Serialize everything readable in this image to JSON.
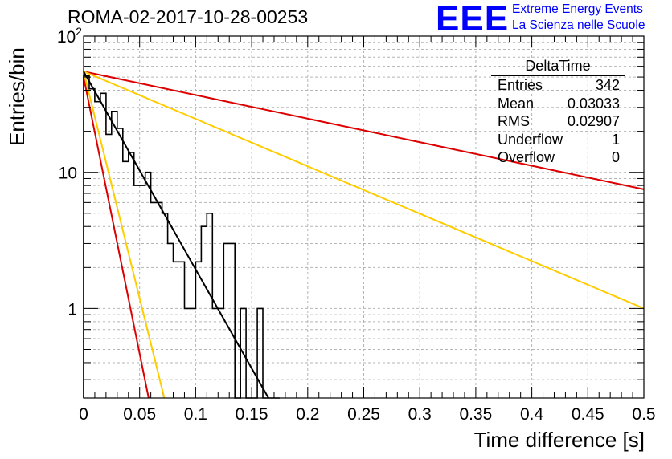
{
  "title": "ROMA-02-2017-10-28-00253",
  "logo": {
    "text": "EEE",
    "line1": "Extreme Energy Events",
    "line2": "La Scienza nelle Scuole"
  },
  "stats": {
    "name": "DeltaTime",
    "rows": [
      {
        "label": "Entries",
        "value": "342"
      },
      {
        "label": "Mean",
        "value": "0.03033"
      },
      {
        "label": "RMS",
        "value": "0.02907"
      },
      {
        "label": "Underflow",
        "value": "1"
      },
      {
        "label": "Overflow",
        "value": "0"
      }
    ]
  },
  "chart_data": {
    "type": "line",
    "title": "ROMA-02-2017-10-28-00253",
    "xlabel": "Time difference [s]",
    "ylabel": "Entries/bin",
    "xlim": [
      0,
      0.5
    ],
    "ylim": [
      0.22,
      100
    ],
    "yscale": "log",
    "grid": true,
    "xticks": [
      0,
      0.05,
      0.1,
      0.15,
      0.2,
      0.25,
      0.3,
      0.35,
      0.4,
      0.45,
      0.5
    ],
    "xtick_labels": [
      "0",
      "0.05",
      "0.1",
      "0.15",
      "0.2",
      "0.25",
      "0.3",
      "0.35",
      "0.4",
      "0.45",
      "0.5"
    ],
    "yticks": [
      1,
      10,
      100
    ],
    "ytick_labels": [
      "1",
      "10",
      "10^2"
    ],
    "histogram": {
      "bin_width": 0.005,
      "values": [
        51,
        41,
        33,
        38,
        19,
        28,
        21,
        12,
        14,
        8,
        8,
        10,
        6,
        6,
        5,
        3,
        2.2,
        2.2,
        1,
        1,
        2.2,
        4,
        5,
        1,
        1,
        3,
        3,
        0,
        1,
        0,
        0,
        1,
        0,
        0,
        0
      ]
    },
    "series": [
      {
        "color": "#dd0000",
        "points": [
          [
            0,
            55
          ],
          [
            0.5,
            7.5
          ]
        ]
      },
      {
        "color": "#ffcc00",
        "points": [
          [
            0,
            55
          ],
          [
            0.5,
            1.0
          ]
        ]
      },
      {
        "color": "#dd0000",
        "points": [
          [
            0,
            50
          ],
          [
            0.058,
            0.22
          ]
        ]
      },
      {
        "color": "#ffcc00",
        "points": [
          [
            0,
            55
          ],
          [
            0.072,
            0.22
          ]
        ]
      },
      {
        "color": "#000000",
        "points": [
          [
            0,
            55
          ],
          [
            0.165,
            0.22
          ]
        ]
      }
    ]
  }
}
